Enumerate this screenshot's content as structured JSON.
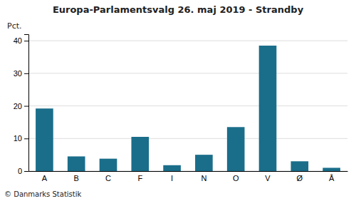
{
  "chart_data": {
    "type": "bar",
    "title": "Europa-Parlamentsvalg 26. maj 2019 - Strandby",
    "categories": [
      "A",
      "B",
      "C",
      "F",
      "I",
      "N",
      "O",
      "V",
      "Ø",
      "Å"
    ],
    "values": [
      19.2,
      4.5,
      3.8,
      10.5,
      1.8,
      5.0,
      13.5,
      38.5,
      3.0,
      1.0
    ],
    "color": "#1a6e8a",
    "ylabel": "Pct.",
    "footer": "© Danmarks Statistik",
    "ylim": [
      0,
      42
    ],
    "yticks": [
      0,
      10,
      20,
      30,
      40
    ],
    "grid": true
  }
}
